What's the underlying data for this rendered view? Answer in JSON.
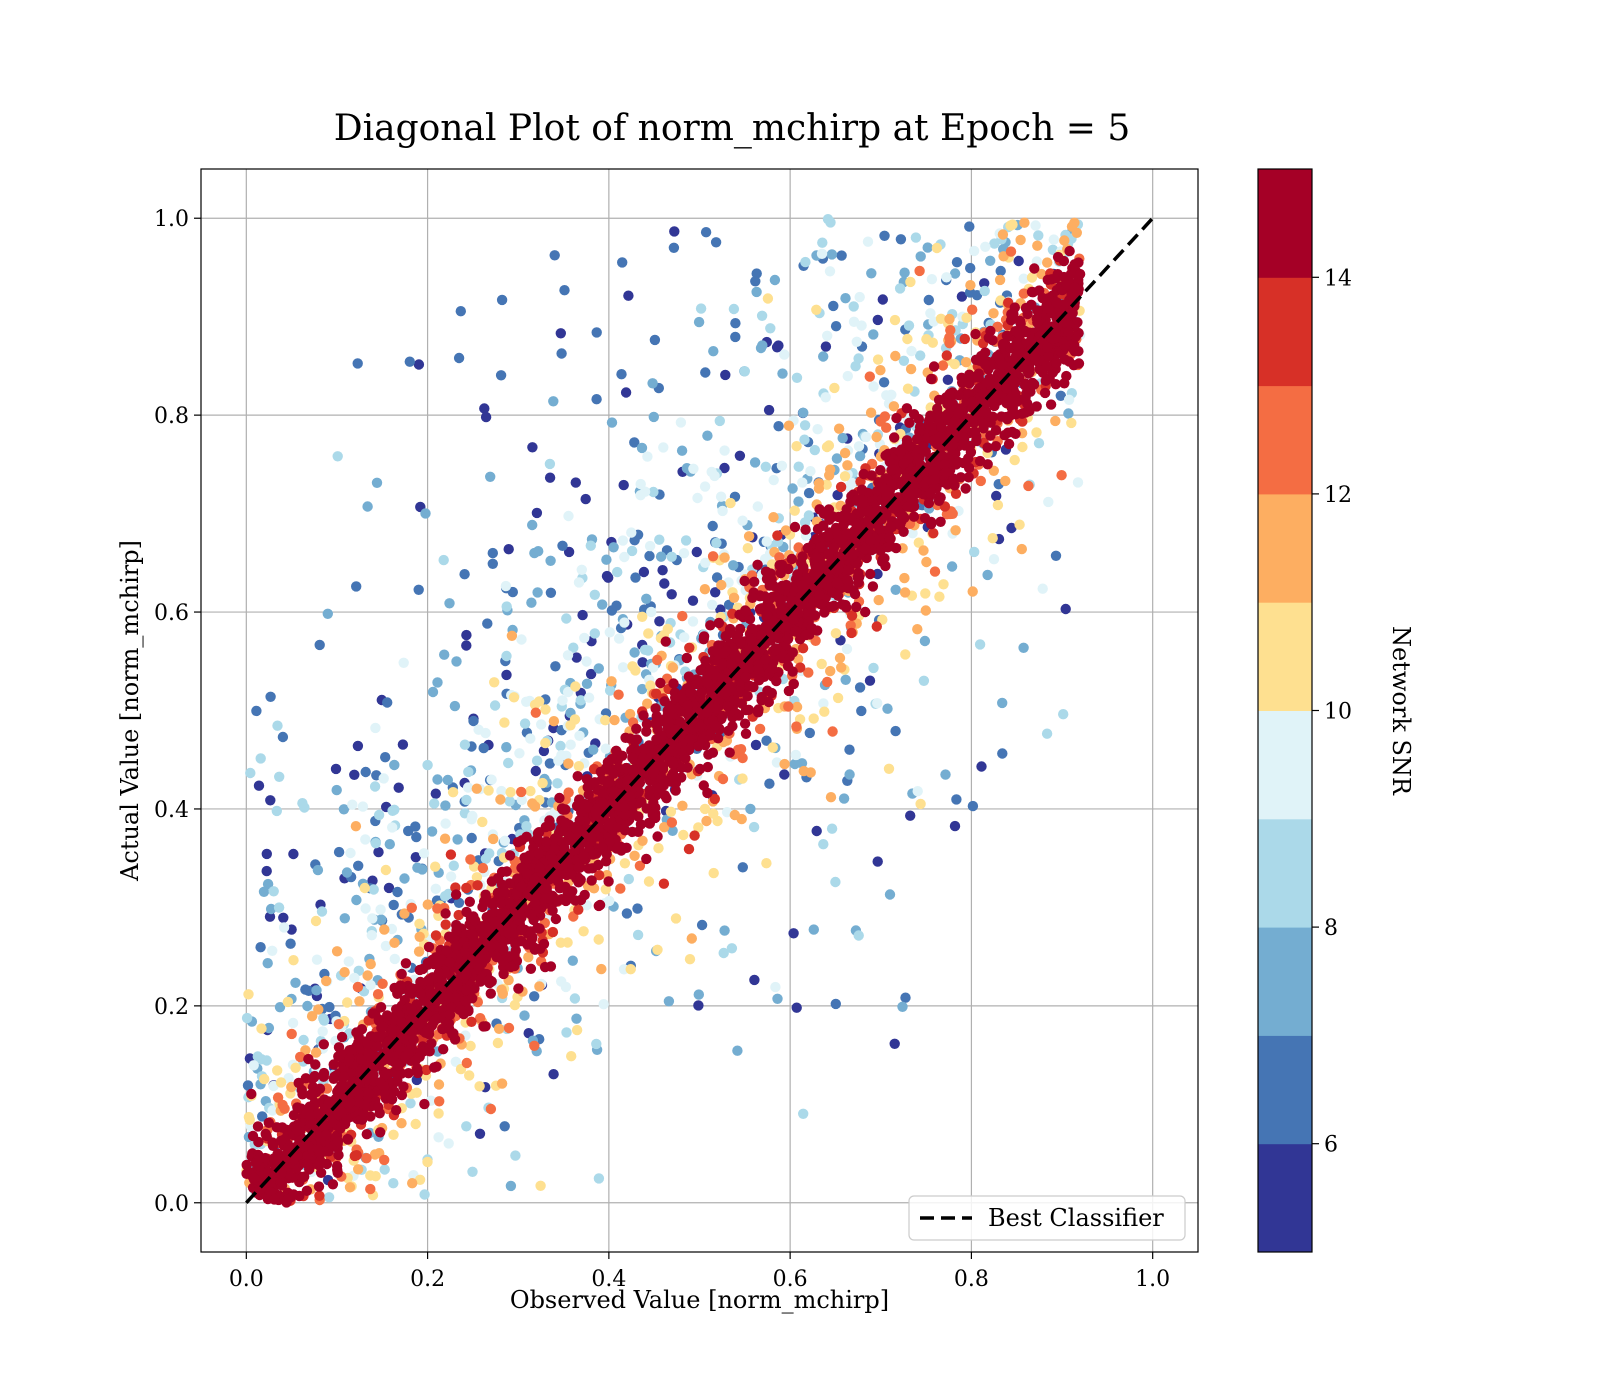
{
  "chart_data": {
    "type": "scatter",
    "title": "Diagonal Plot of norm_mchirp at Epoch = 5",
    "xlabel": "Observed Value [norm_mchirp]",
    "ylabel": "Actual Value [norm_mchirp]",
    "xlim": [
      -0.05,
      1.05
    ],
    "ylim": [
      -0.05,
      1.05
    ],
    "x_ticks": [
      0.0,
      0.2,
      0.4,
      0.6,
      0.8,
      1.0
    ],
    "y_ticks": [
      0.0,
      0.2,
      0.4,
      0.6,
      0.8,
      1.0
    ],
    "x_tick_labels": [
      "0.0",
      "0.2",
      "0.4",
      "0.6",
      "0.8",
      "1.0"
    ],
    "y_tick_labels": [
      "0.0",
      "0.2",
      "0.4",
      "0.6",
      "0.8",
      "1.0"
    ],
    "grid": true,
    "reference_line": {
      "label": "Best Classifier",
      "style": "dashed",
      "color": "#000000",
      "points": [
        [
          0.0,
          0.0
        ],
        [
          1.0,
          1.0
        ]
      ]
    },
    "legend": {
      "placement": "lower-right",
      "entries": [
        "Best Classifier"
      ]
    },
    "scatter_description": {
      "color_by": "Network SNR",
      "high_snr_points_follow_diagonal": true,
      "low_snr_points_scatter_upper_left": true
    },
    "colorbar": {
      "label": "Network SNR",
      "range": [
        5,
        15
      ],
      "ticks": [
        6,
        8,
        10,
        12,
        14
      ],
      "tick_labels": [
        "6",
        "8",
        "10",
        "12",
        "14"
      ],
      "bins": [
        {
          "from": 5,
          "to": 6,
          "color": "#313695"
        },
        {
          "from": 6,
          "to": 7,
          "color": "#4575b4"
        },
        {
          "from": 7,
          "to": 8,
          "color": "#74add1"
        },
        {
          "from": 8,
          "to": 9,
          "color": "#abd9e9"
        },
        {
          "from": 9,
          "to": 10,
          "color": "#e0f3f8"
        },
        {
          "from": 10,
          "to": 11,
          "color": "#fee090"
        },
        {
          "from": 11,
          "to": 12,
          "color": "#fdae61"
        },
        {
          "from": 12,
          "to": 13,
          "color": "#f46d43"
        },
        {
          "from": 13,
          "to": 14,
          "color": "#d73027"
        },
        {
          "from": 14,
          "to": 15,
          "color": "#a50026"
        }
      ]
    }
  }
}
